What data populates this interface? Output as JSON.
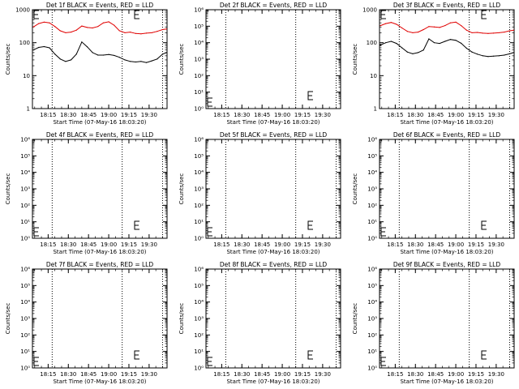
{
  "page": {
    "background": "#ffffff",
    "foreground": "#000000"
  },
  "colors": {
    "events": "#000000",
    "lld": "#e00000",
    "axis": "#000000",
    "marker_lines": "#000000"
  },
  "common": {
    "xlabel": "Start Time (07-May-16 18:03:20)",
    "x_tick_labels": [
      "18:15",
      "18:30",
      "18:45",
      "19:00",
      "19:15",
      "19:30"
    ],
    "marker_times": [
      "18:18",
      "19:10",
      "19:40"
    ],
    "xlim": [
      "18:03:20",
      "19:43:20"
    ]
  },
  "chart_data": [
    {
      "type": "line",
      "title": "Det 1f BLACK = Events, RED = LLD",
      "ylabel": "Counts/sec",
      "yscale": "log",
      "ylim": [
        1,
        1000
      ],
      "y_tick_labels": [
        "1",
        "10",
        "100",
        "1000"
      ],
      "has_data": true,
      "x": [
        "18:04",
        "18:08",
        "18:12",
        "18:16",
        "18:20",
        "18:24",
        "18:28",
        "18:32",
        "18:36",
        "18:40",
        "18:44",
        "18:48",
        "18:52",
        "18:56",
        "19:00",
        "19:04",
        "19:08",
        "19:12",
        "19:16",
        "19:20",
        "19:24",
        "19:28",
        "19:32",
        "19:36",
        "19:40",
        "19:43"
      ],
      "series": [
        {
          "name": "LLD",
          "values": [
            300,
            380,
            420,
            400,
            310,
            230,
            200,
            210,
            240,
            320,
            290,
            280,
            310,
            400,
            430,
            340,
            230,
            200,
            210,
            190,
            185,
            195,
            200,
            220,
            250,
            260
          ]
        },
        {
          "name": "Events",
          "values": [
            60,
            72,
            76,
            70,
            45,
            32,
            27,
            30,
            45,
            105,
            75,
            50,
            42,
            42,
            44,
            41,
            36,
            30,
            27,
            26,
            27,
            25,
            28,
            32,
            45,
            50
          ]
        }
      ]
    },
    {
      "type": "line",
      "title": "Det 2f BLACK = Events, RED = LLD",
      "ylabel": "Counts/sec",
      "yscale": "log",
      "ylim": [
        1,
        1000000
      ],
      "y_tick_labels": [
        "10⁰",
        "10¹",
        "10²",
        "10³",
        "10⁴",
        "10⁵",
        "10⁶"
      ],
      "has_data": false
    },
    {
      "type": "line",
      "title": "Det 3f BLACK = Events, RED = LLD",
      "ylabel": "Counts/sec",
      "yscale": "log",
      "ylim": [
        1,
        1000
      ],
      "y_tick_labels": [
        "1",
        "10",
        "100",
        "1000"
      ],
      "has_data": true,
      "x": [
        "18:04",
        "18:08",
        "18:12",
        "18:16",
        "18:20",
        "18:24",
        "18:28",
        "18:32",
        "18:36",
        "18:40",
        "18:44",
        "18:48",
        "18:52",
        "18:56",
        "19:00",
        "19:04",
        "19:08",
        "19:12",
        "19:16",
        "19:20",
        "19:24",
        "19:28",
        "19:32",
        "19:36",
        "19:40",
        "19:43"
      ],
      "series": [
        {
          "name": "LLD",
          "values": [
            330,
            380,
            410,
            360,
            280,
            220,
            200,
            210,
            250,
            310,
            300,
            290,
            330,
            400,
            420,
            330,
            240,
            200,
            205,
            195,
            190,
            195,
            200,
            210,
            230,
            240
          ]
        },
        {
          "name": "Events",
          "values": [
            85,
            100,
            110,
            95,
            70,
            52,
            46,
            50,
            60,
            130,
            100,
            95,
            110,
            125,
            118,
            96,
            68,
            52,
            45,
            40,
            38,
            39,
            40,
            42,
            46,
            50
          ]
        }
      ]
    },
    {
      "type": "line",
      "title": "Det 4f BLACK = Events, RED = LLD",
      "ylabel": "Counts/sec",
      "yscale": "log",
      "ylim": [
        1,
        1000000
      ],
      "y_tick_labels": [
        "10⁰",
        "10¹",
        "10²",
        "10³",
        "10⁴",
        "10⁵",
        "10⁶"
      ],
      "has_data": false
    },
    {
      "type": "line",
      "title": "Det 5f BLACK = Events, RED = LLD",
      "ylabel": "Counts/sec",
      "yscale": "log",
      "ylim": [
        1,
        1000000
      ],
      "y_tick_labels": [
        "10⁰",
        "10¹",
        "10²",
        "10³",
        "10⁴",
        "10⁵",
        "10⁶"
      ],
      "has_data": false
    },
    {
      "type": "line",
      "title": "Det 6f BLACK = Events, RED = LLD",
      "ylabel": "Counts/sec",
      "yscale": "log",
      "ylim": [
        1,
        1000000
      ],
      "y_tick_labels": [
        "10⁰",
        "10¹",
        "10²",
        "10³",
        "10⁴",
        "10⁵",
        "10⁶"
      ],
      "has_data": false
    },
    {
      "type": "line",
      "title": "Det 7f BLACK = Events, RED = LLD",
      "ylabel": "Counts/sec",
      "yscale": "log",
      "ylim": [
        1,
        1000000
      ],
      "y_tick_labels": [
        "10⁰",
        "10¹",
        "10²",
        "10³",
        "10⁴",
        "10⁵",
        "10⁶"
      ],
      "has_data": false
    },
    {
      "type": "line",
      "title": "Det 8f BLACK = Events, RED = LLD",
      "ylabel": "Counts/sec",
      "yscale": "log",
      "ylim": [
        1,
        1000000
      ],
      "y_tick_labels": [
        "10⁰",
        "10¹",
        "10²",
        "10³",
        "10⁴",
        "10⁵",
        "10⁶"
      ],
      "has_data": false
    },
    {
      "type": "line",
      "title": "Det 9f BLACK = Events, RED = LLD",
      "ylabel": "Counts/sec",
      "yscale": "log",
      "ylim": [
        1,
        1000000
      ],
      "y_tick_labels": [
        "10⁰",
        "10¹",
        "10²",
        "10³",
        "10⁴",
        "10⁵",
        "10⁶"
      ],
      "has_data": false
    }
  ]
}
